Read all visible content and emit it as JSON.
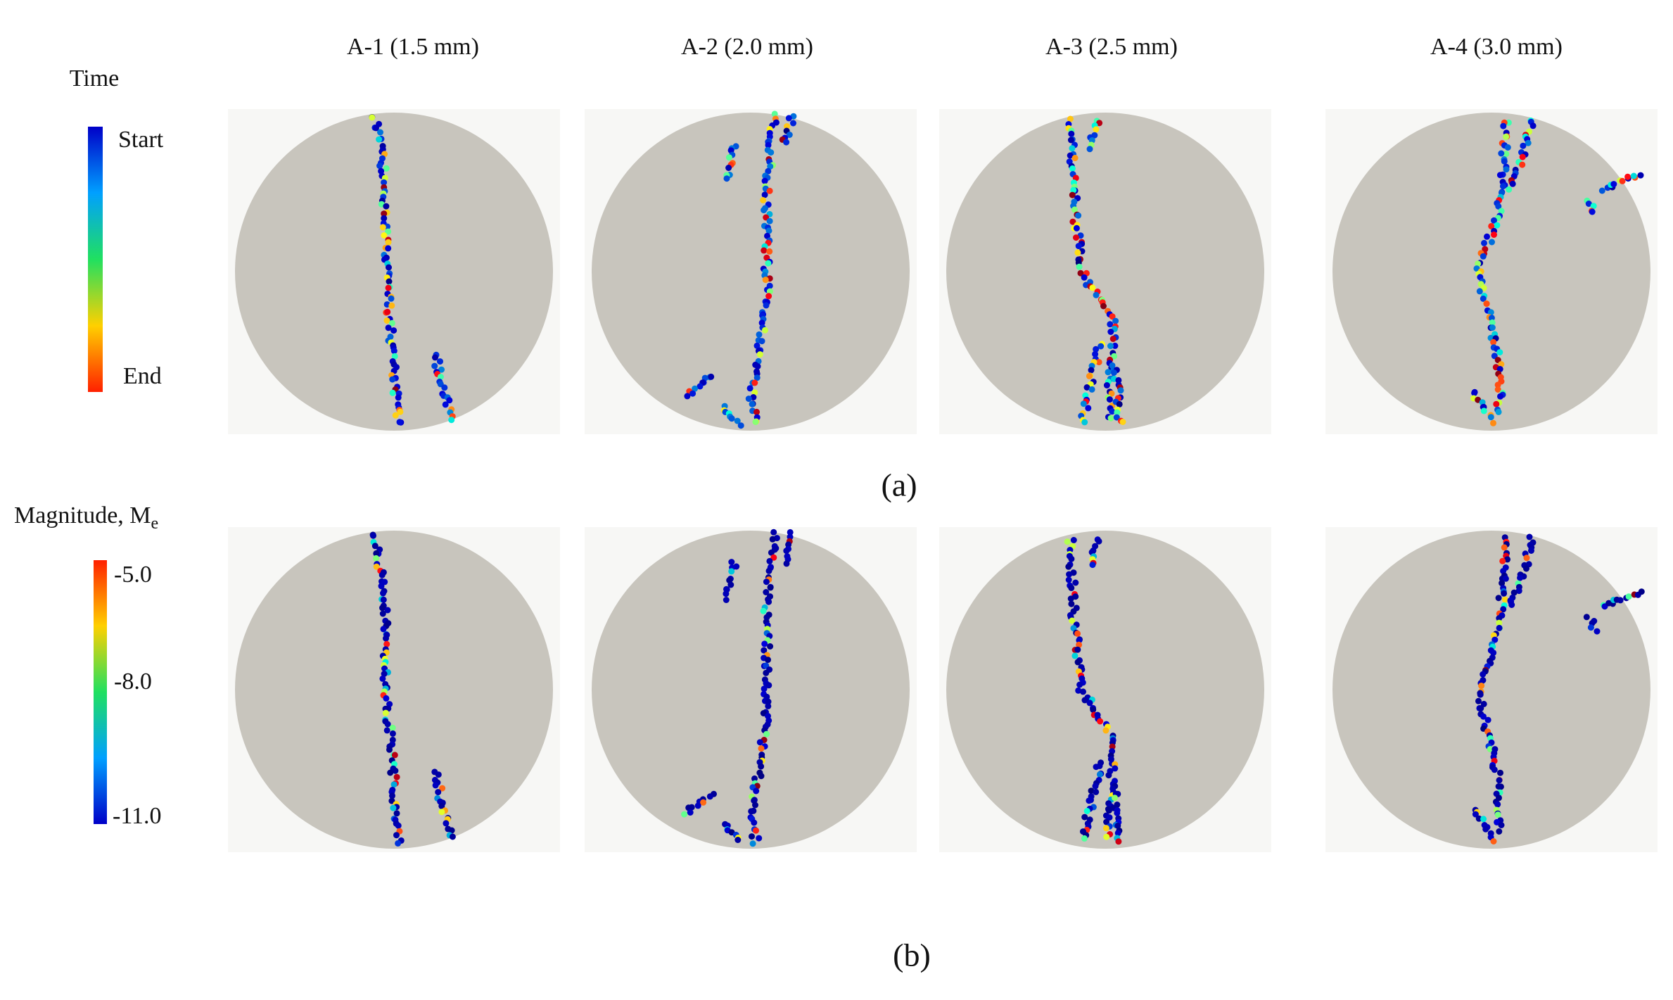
{
  "columns": [
    "A-1 (1.5 mm)",
    "A-2 (2.0 mm)",
    "A-3 (2.5 mm)",
    "A-4 (3.0 mm)"
  ],
  "panels": [
    {
      "label": "(a)",
      "legend": {
        "title": "Time",
        "top": "Start",
        "bottom": "End"
      }
    },
    {
      "label": "(b)",
      "legend": {
        "title": "Magnitude, M",
        "subscript": "e",
        "ticks": [
          "-5.0",
          "-8.0",
          "-11.0"
        ]
      }
    }
  ]
}
